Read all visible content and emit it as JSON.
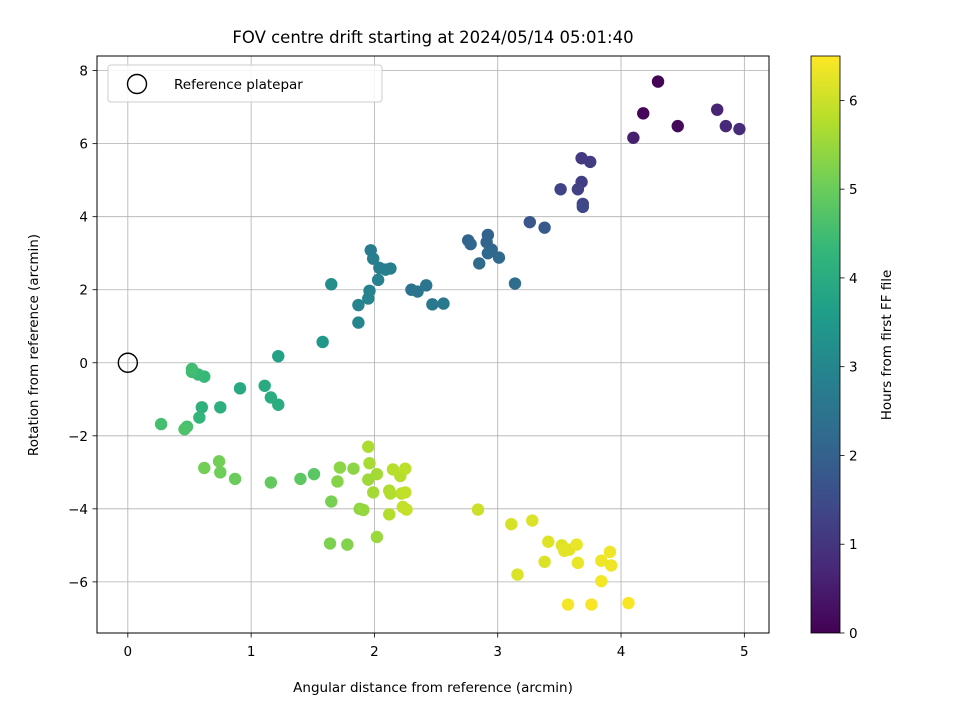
{
  "chart_data": {
    "type": "scatter",
    "title": "FOV centre drift starting at 2024/05/14 05:01:40",
    "xlabel": "Angular distance from reference (arcmin)",
    "ylabel": "Rotation from reference (arcmin)",
    "xlim": [
      -0.25,
      5.2
    ],
    "ylim": [
      -7.4,
      8.4
    ],
    "x_ticks": [
      0,
      1,
      2,
      3,
      4,
      5
    ],
    "y_ticks": [
      -6,
      -4,
      -2,
      0,
      2,
      4,
      6,
      8
    ],
    "grid": true,
    "legend": {
      "placement": "top-left",
      "entries": [
        "Reference platepar"
      ]
    },
    "reference": {
      "name": "Reference platepar",
      "x": 0,
      "y": 0,
      "marker": "open-circle"
    },
    "colorbar": {
      "label": "Hours from first FF file",
      "range": [
        0,
        6.5
      ],
      "ticks": [
        0,
        1,
        2,
        3,
        4,
        5,
        6
      ],
      "colormap": "viridis"
    },
    "colors": {
      "viridis": [
        "#440154",
        "#482878",
        "#3e4a89",
        "#31688e",
        "#26828e",
        "#1f9e89",
        "#35b779",
        "#6ece58",
        "#b5de2b",
        "#fde725"
      ]
    },
    "series": [
      {
        "points": [
          [
            4.3,
            7.7,
            0.05
          ],
          [
            4.18,
            6.83,
            0.1
          ],
          [
            4.46,
            6.48,
            0.15
          ],
          [
            4.1,
            6.16,
            0.55
          ],
          [
            4.78,
            6.93,
            0.65
          ],
          [
            4.85,
            6.48,
            0.75
          ],
          [
            4.96,
            6.4,
            0.8
          ],
          [
            3.68,
            5.6,
            1.1
          ],
          [
            3.75,
            5.5,
            1.15
          ],
          [
            3.68,
            4.95,
            1.2
          ],
          [
            3.65,
            4.75,
            1.25
          ],
          [
            3.51,
            4.75,
            1.3
          ],
          [
            3.69,
            4.35,
            1.35
          ],
          [
            3.69,
            4.27,
            1.4
          ],
          [
            3.26,
            3.85,
            1.75
          ],
          [
            3.38,
            3.7,
            1.8
          ],
          [
            2.92,
            3.5,
            2.05
          ],
          [
            2.91,
            3.3,
            2.1
          ],
          [
            2.76,
            3.35,
            2.1
          ],
          [
            2.78,
            3.25,
            2.15
          ],
          [
            2.95,
            3.1,
            2.15
          ],
          [
            2.92,
            3.0,
            2.2
          ],
          [
            3.01,
            2.88,
            2.25
          ],
          [
            2.85,
            2.72,
            2.25
          ],
          [
            3.14,
            2.17,
            2.3
          ],
          [
            2.3,
            2.0,
            2.5
          ],
          [
            2.35,
            1.95,
            2.55
          ],
          [
            2.42,
            2.12,
            2.55
          ],
          [
            2.47,
            1.6,
            2.6
          ],
          [
            2.56,
            1.62,
            2.6
          ],
          [
            1.97,
            3.08,
            2.7
          ],
          [
            1.99,
            2.85,
            2.75
          ],
          [
            2.04,
            2.6,
            2.75
          ],
          [
            2.09,
            2.55,
            2.8
          ],
          [
            2.13,
            2.58,
            2.8
          ],
          [
            2.03,
            2.27,
            2.85
          ],
          [
            1.96,
            1.97,
            2.9
          ],
          [
            1.95,
            1.76,
            2.95
          ],
          [
            1.87,
            1.58,
            2.95
          ],
          [
            1.87,
            1.1,
            3.0
          ],
          [
            1.65,
            2.15,
            3.2
          ],
          [
            1.58,
            0.57,
            3.45
          ],
          [
            1.22,
            0.18,
            3.7
          ],
          [
            0.91,
            -0.7,
            3.9
          ],
          [
            1.11,
            -0.63,
            3.95
          ],
          [
            1.16,
            -0.95,
            4.0
          ],
          [
            1.22,
            -1.15,
            4.05
          ],
          [
            0.75,
            -1.22,
            4.1
          ],
          [
            0.6,
            -1.22,
            4.15
          ],
          [
            0.58,
            -1.5,
            4.25
          ],
          [
            0.62,
            -0.38,
            4.35
          ],
          [
            0.57,
            -0.32,
            4.4
          ],
          [
            0.52,
            -0.25,
            4.45
          ],
          [
            0.52,
            -0.17,
            4.5
          ],
          [
            0.27,
            -1.68,
            4.55
          ],
          [
            0.48,
            -1.75,
            4.6
          ],
          [
            0.46,
            -1.82,
            4.65
          ],
          [
            1.51,
            -3.05,
            4.8
          ],
          [
            1.4,
            -3.18,
            4.85
          ],
          [
            1.16,
            -3.28,
            4.9
          ],
          [
            0.87,
            -3.18,
            5.0
          ],
          [
            0.75,
            -3.0,
            5.05
          ],
          [
            0.74,
            -2.7,
            5.1
          ],
          [
            0.62,
            -2.88,
            5.1
          ],
          [
            1.65,
            -3.8,
            5.15
          ],
          [
            1.64,
            -4.95,
            5.2
          ],
          [
            1.78,
            -4.98,
            5.25
          ],
          [
            1.7,
            -3.25,
            5.3
          ],
          [
            1.72,
            -2.87,
            5.35
          ],
          [
            1.83,
            -2.9,
            5.35
          ],
          [
            1.88,
            -4.0,
            5.4
          ],
          [
            1.91,
            -4.03,
            5.45
          ],
          [
            2.02,
            -4.77,
            5.5
          ],
          [
            1.95,
            -3.2,
            5.55
          ],
          [
            1.99,
            -3.55,
            5.6
          ],
          [
            2.02,
            -3.05,
            5.6
          ],
          [
            1.96,
            -2.75,
            5.65
          ],
          [
            1.95,
            -2.3,
            5.7
          ],
          [
            2.12,
            -3.5,
            5.7
          ],
          [
            2.13,
            -3.58,
            5.75
          ],
          [
            2.12,
            -4.15,
            5.75
          ],
          [
            2.15,
            -2.92,
            5.8
          ],
          [
            2.21,
            -3.1,
            5.8
          ],
          [
            2.25,
            -2.9,
            5.85
          ],
          [
            2.22,
            -3.58,
            5.85
          ],
          [
            2.25,
            -3.55,
            5.9
          ],
          [
            2.23,
            -3.95,
            5.9
          ],
          [
            2.26,
            -4.02,
            5.95
          ],
          [
            2.84,
            -4.02,
            6.0
          ],
          [
            3.11,
            -4.42,
            6.1
          ],
          [
            3.28,
            -4.32,
            6.15
          ],
          [
            3.38,
            -5.45,
            6.15
          ],
          [
            3.16,
            -5.8,
            6.15
          ],
          [
            3.41,
            -4.9,
            6.2
          ],
          [
            3.52,
            -5.0,
            6.2
          ],
          [
            3.54,
            -5.15,
            6.25
          ],
          [
            3.58,
            -5.12,
            6.25
          ],
          [
            3.64,
            -4.98,
            6.3
          ],
          [
            3.65,
            -5.48,
            6.3
          ],
          [
            3.84,
            -5.42,
            6.35
          ],
          [
            3.91,
            -5.18,
            6.35
          ],
          [
            3.92,
            -5.55,
            6.35
          ],
          [
            3.84,
            -5.98,
            6.4
          ],
          [
            3.57,
            -6.62,
            6.4
          ],
          [
            3.76,
            -6.62,
            6.45
          ],
          [
            4.06,
            -6.58,
            6.45
          ]
        ]
      }
    ]
  }
}
